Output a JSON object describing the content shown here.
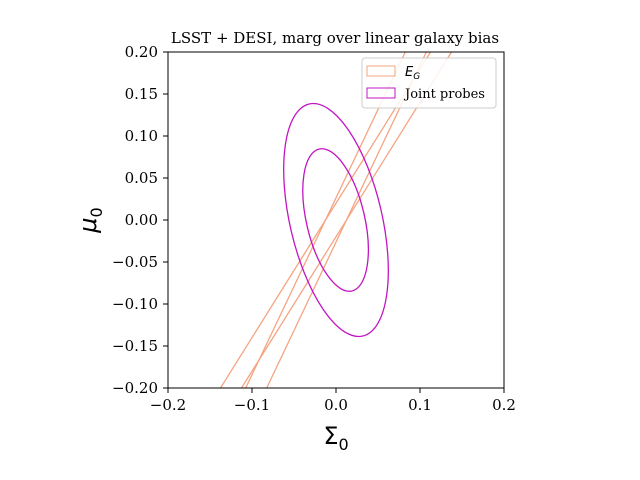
{
  "chart_data": {
    "type": "contour",
    "title": "LSST + DESI, marg over linear galaxy bias",
    "xlabel": "Σ",
    "xlabel_sub": "0",
    "ylabel": "μ",
    "ylabel_sub": "0",
    "xlim": [
      -0.2,
      0.2
    ],
    "ylim": [
      -0.2,
      0.2
    ],
    "xticks": [
      -0.2,
      -0.1,
      0.0,
      0.1,
      0.2
    ],
    "xtick_labels": [
      "−0.2",
      "−0.1",
      "0.0",
      "0.1",
      "0.2"
    ],
    "yticks": [
      -0.2,
      -0.15,
      -0.1,
      -0.05,
      0.0,
      0.05,
      0.1,
      0.15,
      0.2
    ],
    "ytick_labels": [
      "−0.20",
      "−0.15",
      "−0.10",
      "−0.05",
      "0.00",
      "0.05",
      "0.10",
      "0.15",
      "0.20"
    ],
    "grid": false,
    "legend_position": "top-right",
    "series": [
      {
        "name": "E",
        "name_sub": "G",
        "color": "#f4a582",
        "style": "band",
        "description_values": {
          "center": [
            0.0,
            0.0
          ],
          "slope_dy_dx": 2.95,
          "inner_band_x_at_y": [
            [
              -0.108,
              -0.2
            ],
            [
              0.086,
              0.2
            ],
            [
              -0.086,
              0.2
            ],
            [
              0.108,
              -0.2
            ]
          ],
          "outer_band_x_at_y": [
            [
              -0.138,
              -0.2
            ],
            [
              0.112,
              0.2
            ],
            [
              -0.112,
              0.2
            ],
            [
              0.138,
              -0.2
            ]
          ]
        },
        "lines": [
          {
            "x": [
              -0.1375,
              0.1125
            ],
            "y": [
              -0.2,
              0.2
            ]
          },
          {
            "x": [
              -0.1075,
              0.0825
            ],
            "y": [
              -0.2,
              0.2
            ]
          },
          {
            "x": [
              -0.0825,
              0.1075
            ],
            "y": [
              -0.2,
              0.2
            ]
          },
          {
            "x": [
              -0.1125,
              0.1375
            ],
            "y": [
              -0.2,
              0.2
            ]
          }
        ]
      },
      {
        "name": "Joint probes",
        "color": "#c215c2",
        "style": "ellipse",
        "ellipses": [
          {
            "level": "1-sigma",
            "cx": -0.0005,
            "cy": 0.0,
            "ymax": 0.085,
            "ymin": -0.085,
            "xmin": -0.039,
            "xmax": 0.038
          },
          {
            "level": "2-sigma",
            "cx": 0.0,
            "cy": 0.0,
            "ymax": 0.139,
            "ymin": -0.139,
            "xmin": -0.063,
            "xmax": 0.059
          }
        ]
      }
    ]
  }
}
